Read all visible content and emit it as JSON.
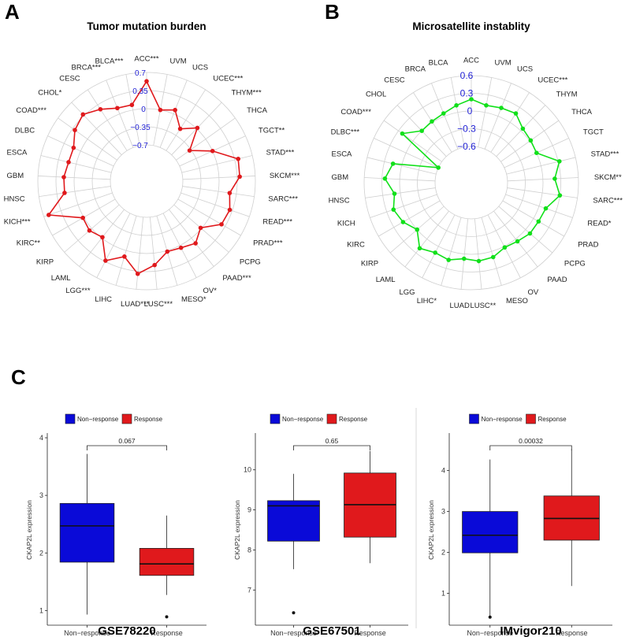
{
  "panels": {
    "a": "A",
    "b": "B",
    "c": "C"
  },
  "chart_data": [
    {
      "type": "radar",
      "title": "Tumor mutation burden",
      "rticks": [
        "0.7",
        "0.35",
        "0",
        "−0.35",
        "−0.7"
      ],
      "rlim": [
        -0.7,
        0.7
      ],
      "color": "#e0191c",
      "categories": [
        "ACC***",
        "UVM",
        "UCS",
        "UCEC***",
        "THYM***",
        "THCA",
        "TGCT**",
        "STAD***",
        "SKCM***",
        "SARC***",
        "READ***",
        "PRAD***",
        "PCPG",
        "PAAD***",
        "OV*",
        "MESO*",
        "LUSC***",
        "LUAD***",
        "LIHC",
        "LGG***",
        "LAML",
        "KIRP",
        "KIRC**",
        "KICH***",
        "HNSC",
        "GBM",
        "ESCA",
        "DLBC",
        "COAD***",
        "CHOL*",
        "CESC",
        "BRCA***",
        "BLCA***"
      ],
      "values": [
        0.53,
        0.0,
        0.08,
        -0.2,
        0.02,
        -0.38,
        0.0,
        0.42,
        0.4,
        0.22,
        0.3,
        0.27,
        -0.02,
        0.13,
        0.05,
        0.02,
        0.23,
        0.4,
        0.12,
        0.33,
        -0.02,
        0.06,
        0.02,
        0.6,
        0.2,
        0.2,
        0.15,
        0.15,
        0.3,
        0.38,
        0.25,
        0.12,
        0.1
      ]
    },
    {
      "type": "radar",
      "title": "Microsatellite instablity",
      "rticks": [
        "0.6",
        "0.3",
        "0",
        "−0.3",
        "−0.6"
      ],
      "rlim": [
        -0.6,
        0.6
      ],
      "color": "#11e01a",
      "categories": [
        "ACC",
        "UVM",
        "UCS",
        "UCEC***",
        "THYM",
        "THCA",
        "TGCT",
        "STAD***",
        "SKCM**",
        "SARC***",
        "READ*",
        "PRAD",
        "PCPG",
        "PAAD",
        "OV",
        "MESO",
        "LUSC**",
        "LUAD",
        "LIHC*",
        "LGG",
        "LAML",
        "KIRP",
        "KIRC",
        "KICH",
        "HNSC",
        "GBM",
        "ESCA",
        "DLBC***",
        "COAD***",
        "CHOL",
        "CESC",
        "BRCA",
        "BLCA"
      ],
      "values": [
        0.2,
        0.12,
        0.15,
        0.18,
        0.05,
        0.02,
        0.0,
        0.32,
        0.2,
        0.3,
        0.12,
        0.1,
        0.1,
        0.05,
        0.02,
        0.1,
        0.12,
        0.08,
        0.15,
        0.12,
        0.2,
        0.0,
        0.12,
        0.18,
        0.1,
        0.25,
        0.15,
        -0.6,
        0.22,
        0.0,
        0.02,
        0.05,
        0.12
      ]
    },
    {
      "type": "boxplot",
      "title": "GSE78220",
      "ylabel": "CKAP2L expression",
      "legend": [
        "Non−response",
        "Response"
      ],
      "categories": [
        "Non−response",
        "Response"
      ],
      "pvalue": "0.067",
      "yticks": [
        1,
        2,
        3,
        4
      ],
      "ylim": [
        0.8,
        4.0
      ],
      "boxes": [
        {
          "min": 0.93,
          "q1": 1.84,
          "median": 2.47,
          "q3": 2.86,
          "max": 3.72,
          "outliers": []
        },
        {
          "min": 1.27,
          "q1": 1.61,
          "median": 1.81,
          "q3": 2.08,
          "max": 2.65,
          "outliers": [
            0.89
          ]
        }
      ]
    },
    {
      "type": "boxplot",
      "title": "GSE67501",
      "ylabel": "CKAP2L expression",
      "legend": [
        "Non−response",
        "Response"
      ],
      "categories": [
        "Non−response",
        "Response"
      ],
      "pvalue": "0.65",
      "yticks": [
        7,
        8,
        9,
        10
      ],
      "ylim": [
        6.2,
        10.8
      ],
      "boxes": [
        {
          "min": 7.52,
          "q1": 8.22,
          "median": 9.1,
          "q3": 9.23,
          "max": 9.9,
          "outliers": [
            6.43
          ]
        },
        {
          "min": 7.67,
          "q1": 8.32,
          "median": 9.13,
          "q3": 9.92,
          "max": 10.47,
          "outliers": []
        }
      ]
    },
    {
      "type": "boxplot",
      "title": "IMvigor210",
      "ylabel": "CKAP2L expression",
      "legend": [
        "Non−response",
        "Response"
      ],
      "categories": [
        "Non−response",
        "Response"
      ],
      "pvalue": "0.00032",
      "yticks": [
        1,
        2,
        3,
        4
      ],
      "ylim": [
        0.3,
        4.8
      ],
      "boxes": [
        {
          "min": 0.42,
          "q1": 1.99,
          "median": 2.42,
          "q3": 3.0,
          "max": 4.27,
          "outliers": [
            0.42
          ]
        },
        {
          "min": 1.18,
          "q1": 2.3,
          "median": 2.83,
          "q3": 3.38,
          "max": 4.52,
          "outliers": []
        }
      ]
    }
  ],
  "colors": {
    "nonresponse": "#0a0ad8",
    "response": "#e0191c"
  }
}
